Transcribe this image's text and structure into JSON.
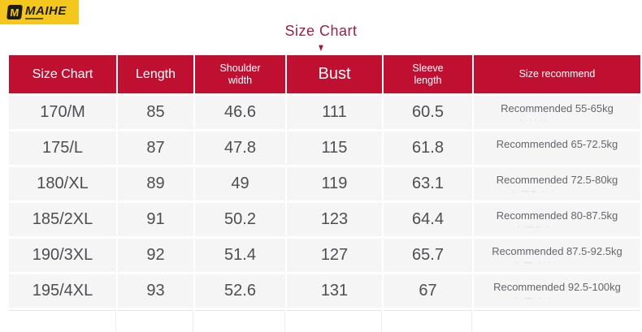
{
  "brand": {
    "monogram": "M",
    "name": "MAIHE"
  },
  "title": {
    "text": "Size Chart",
    "arrow": "▼"
  },
  "colors": {
    "logo_bg": "#f3c71d",
    "header_bg": "#c01031",
    "header_text": "#ffffff",
    "title_red": "#9b2143",
    "row_bg": "#f5f5f6"
  },
  "table": {
    "headers": {
      "size": "Size Chart",
      "length": "Length",
      "shoulder": "Shoulder\nwidth",
      "bust": "Bust",
      "sleeve": "Sleeve\nlength",
      "recommend": "Size recommend"
    },
    "rows": [
      {
        "size": "170/M",
        "length": "85",
        "shoulder": "46.6",
        "bust": "111",
        "sleeve": "60.5",
        "recommend": "Recommended 55-65kg",
        "remnant": "· ·· ·"
      },
      {
        "size": "175/L",
        "length": "87",
        "shoulder": "47.8",
        "bust": "115",
        "sleeve": "61.8",
        "recommend": "Recommended 65-72.5kg",
        "remnant": ""
      },
      {
        "size": "180/XL",
        "length": "89",
        "shoulder": "49",
        "bust": "119",
        "sleeve": "63.1",
        "recommend": "Recommended 72.5-80kg",
        "remnant": "· ―– · ·"
      },
      {
        "size": "185/2XL",
        "length": "91",
        "shoulder": "50.2",
        "bust": "123",
        "sleeve": "64.4",
        "recommend": "Recommended 80-87.5kg",
        "remnant": "· ―– ·"
      },
      {
        "size": "190/3XL",
        "length": "92",
        "shoulder": "51.4",
        "bust": "127",
        "sleeve": "65.7",
        "recommend": "Recommended 87.5-92.5kg",
        "remnant": "· ― · ·"
      },
      {
        "size": "195/4XL",
        "length": "93",
        "shoulder": "52.6",
        "bust": "131",
        "sleeve": "67",
        "recommend": "Recommended 92.5-100kg",
        "remnant": "· ― · ·"
      }
    ]
  }
}
